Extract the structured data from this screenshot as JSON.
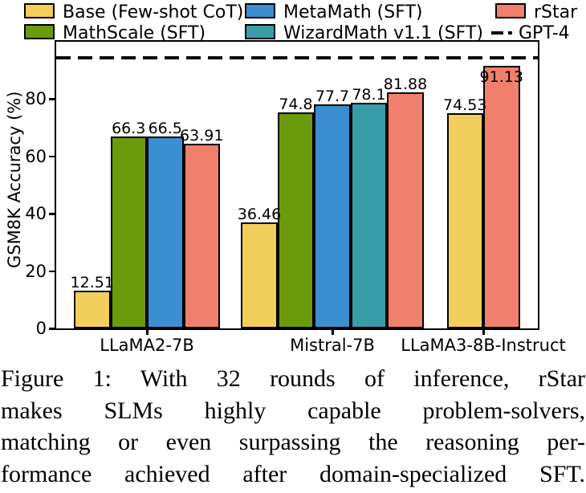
{
  "chart_data": {
    "type": "bar",
    "title": "",
    "xlabel": "",
    "ylabel": "GSM8K Accuracy (%)",
    "ylim": [
      0,
      100
    ],
    "yticks": [
      0,
      20,
      40,
      60,
      80
    ],
    "grid": false,
    "legend_position": "top",
    "bar_value_labels": true,
    "categories": [
      "LLaMA2-7B",
      "Mistral-7B",
      "LLaMA3-8B-Instruct"
    ],
    "series": [
      {
        "name": "Base (Few-shot CoT)",
        "color": "#F2CF5C",
        "values": [
          12.51,
          36.46,
          74.53
        ]
      },
      {
        "name": "MathScale (SFT)",
        "color": "#6C9A0D",
        "values": [
          66.3,
          74.8,
          null
        ]
      },
      {
        "name": "MetaMath (SFT)",
        "color": "#3B8FD0",
        "values": [
          66.5,
          77.7,
          null
        ]
      },
      {
        "name": "WizardMath v1.1 (SFT)",
        "color": "#399DA8",
        "values": [
          null,
          78.1,
          null
        ]
      },
      {
        "name": "rStar",
        "color": "#F0806B",
        "values": [
          63.91,
          81.88,
          91.13
        ]
      }
    ],
    "reference_line": {
      "label": "GPT-4",
      "value": 94.5,
      "style": "dashed",
      "color": "#000000"
    }
  },
  "legend": {
    "items": [
      {
        "label": "Base (Few-shot CoT)",
        "color": "#F2CF5C",
        "marker": "patch"
      },
      {
        "label": "MathScale (SFT)",
        "color": "#6C9A0D",
        "marker": "patch"
      },
      {
        "label": "MetaMath (SFT)",
        "color": "#3B8FD0",
        "marker": "patch"
      },
      {
        "label": "WizardMath v1.1 (SFT)",
        "color": "#399DA8",
        "marker": "patch"
      },
      {
        "label": "rStar",
        "color": "#F0806B",
        "marker": "patch"
      },
      {
        "label": "GPT-4",
        "color": "#000000",
        "marker": "dash-dot-line"
      }
    ]
  },
  "caption": {
    "lines": [
      "Figure 1:  With 32 rounds of inference, rStar",
      "makes SLMs highly capable problem-solvers,",
      "matching or even surpassing the reasoning per-",
      "formance achieved after domain-specialized SFT."
    ]
  }
}
